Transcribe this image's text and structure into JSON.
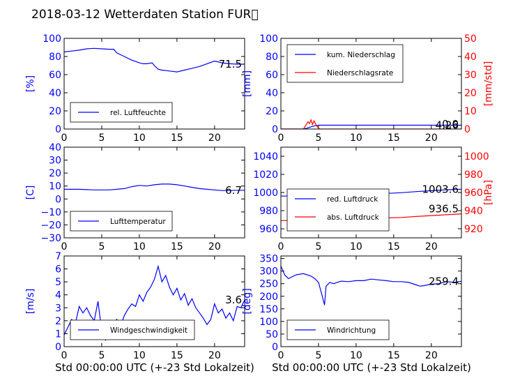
{
  "title": "2018-03-12 Wetterdaten Station FUR\u0000",
  "colors": {
    "blue": "#0000ff",
    "red": "#ff0000",
    "text": "#000000"
  },
  "x_label": "Std 00:00:00 UTC (+-23 Std Lokalzeit)",
  "chart_data": [
    {
      "type": "line",
      "xlim": [
        0,
        24
      ],
      "ylim": [
        0,
        100
      ],
      "x_ticks": [
        "0",
        "5",
        "10",
        "15",
        "20"
      ],
      "y_ticks": [
        "0",
        "20",
        "40",
        "60",
        "80",
        "100"
      ],
      "ylabel": "[%]",
      "legend": "bottom-left",
      "series": [
        {
          "name": "rel. Luftfeuchte",
          "color": "#0000ff",
          "x": [
            0,
            1,
            2,
            3,
            4,
            5,
            6,
            6.6,
            7,
            8,
            9,
            10,
            10.5,
            11,
            11.7,
            12,
            12.5,
            13,
            14,
            15,
            16,
            17,
            18,
            19,
            20,
            21,
            22,
            23,
            24
          ],
          "y": [
            85,
            86,
            87,
            88.5,
            89,
            88.5,
            88,
            88,
            84,
            80,
            76,
            73,
            72,
            72,
            73,
            70,
            66,
            65,
            64,
            63,
            65,
            67,
            69,
            72,
            75,
            73,
            72,
            71.5,
            71.5
          ]
        }
      ],
      "last_value": "71.5"
    },
    {
      "type": "line",
      "xlim": [
        0,
        24
      ],
      "ylim": [
        0,
        100
      ],
      "x_ticks": [
        "0",
        "5",
        "10",
        "15",
        "20"
      ],
      "y_ticks": [
        "0",
        "20",
        "40",
        "60",
        "80",
        "100"
      ],
      "ylabel": "[mm]",
      "y2lim": [
        0,
        50
      ],
      "y2_ticks": [
        "0",
        "10",
        "20",
        "30",
        "40",
        "50"
      ],
      "y2label": "[mm/std]",
      "legend": "top-left",
      "series": [
        {
          "name": "kum. Niederschlag",
          "color": "#0000ff",
          "axis": "left",
          "x": [
            0,
            3,
            3.5,
            4,
            4.5,
            5,
            5.5,
            24
          ],
          "y": [
            0,
            0,
            1,
            2.5,
            3.5,
            4.26,
            4.26,
            4.26
          ]
        },
        {
          "name": "Niederschlagsrate",
          "color": "#ff0000",
          "axis": "right",
          "x": [
            0,
            3,
            3.3,
            3.6,
            3.8,
            4,
            4.2,
            4.4,
            4.6,
            4.8,
            5,
            5.2,
            5.5,
            24
          ],
          "y": [
            0,
            0,
            2,
            4,
            3,
            5,
            2.5,
            4.5,
            3,
            1.5,
            0.5,
            0,
            0,
            0
          ]
        }
      ],
      "last_value": "4.26",
      "last_value_2": "0.0"
    },
    {
      "type": "line",
      "xlim": [
        0,
        24
      ],
      "ylim": [
        -30,
        40
      ],
      "x_ticks": [
        "0",
        "5",
        "10",
        "15",
        "20"
      ],
      "y_ticks": [
        "−30",
        "−20",
        "−10",
        "0",
        "10",
        "20",
        "30",
        "40"
      ],
      "ylabel": "[C]",
      "legend": "bottom-left",
      "series": [
        {
          "name": "Lufttemperatur",
          "color": "#0000ff",
          "x": [
            0,
            2,
            4,
            6,
            7,
            8,
            9,
            10,
            11,
            12,
            13,
            14,
            15,
            16,
            17,
            18,
            19,
            20,
            21,
            22,
            23,
            24
          ],
          "y": [
            7.5,
            7.5,
            7,
            7,
            7.5,
            8,
            9.5,
            10.5,
            10,
            11,
            11.5,
            11.5,
            11,
            10,
            9,
            8,
            7.5,
            7,
            6.5,
            6.5,
            6.7,
            6.7
          ]
        }
      ],
      "last_value": "6.7"
    },
    {
      "type": "line",
      "xlim": [
        0,
        24
      ],
      "ylim": [
        950,
        1050
      ],
      "x_ticks": [
        "0",
        "5",
        "10",
        "15",
        "20"
      ],
      "y_ticks": [
        "960",
        "980",
        "1000",
        "1020",
        "1040"
      ],
      "ylabel": "",
      "y2lim": [
        910,
        1010
      ],
      "y2_ticks": [
        "920",
        "940",
        "960",
        "980",
        "1000"
      ],
      "y2label": "[hPa]",
      "legend": "bottom-left",
      "series": [
        {
          "name": "red. Luftdruck",
          "color": "#0000ff",
          "axis": "left",
          "x": [
            0,
            4,
            8,
            10,
            12,
            14,
            16,
            18,
            20,
            22,
            24
          ],
          "y": [
            996,
            996.5,
            997.5,
            998.5,
            999,
            999,
            999.8,
            1001,
            1002,
            1003,
            1003.6
          ]
        },
        {
          "name": "abs. Luftdruck",
          "color": "#ff0000",
          "axis": "right",
          "x": [
            0,
            4,
            8,
            10,
            12,
            14,
            16,
            18,
            20,
            22,
            24
          ],
          "y": [
            929,
            929.5,
            930.5,
            931,
            931.5,
            932,
            932.5,
            933.5,
            934.5,
            935.5,
            936.5
          ]
        }
      ],
      "last_value": "1003.6",
      "last_value_2": "936.5"
    },
    {
      "type": "line",
      "xlim": [
        0,
        24
      ],
      "ylim": [
        0,
        7
      ],
      "x_ticks": [
        "0",
        "5",
        "10",
        "15",
        "20"
      ],
      "y_ticks": [
        "0",
        "1",
        "2",
        "3",
        "4",
        "5",
        "6",
        "7"
      ],
      "ylabel": "[m/s]",
      "legend": "bottom-left",
      "series": [
        {
          "name": "Windgeschwindigkeit",
          "color": "#0000ff",
          "x": [
            0,
            0.5,
            1,
            1.5,
            2,
            2.5,
            3,
            3.5,
            4,
            4.5,
            5,
            5.5,
            6,
            6.5,
            7,
            7.5,
            8,
            8.5,
            9,
            9.5,
            10,
            10.5,
            11,
            11.5,
            12,
            12.5,
            13,
            13.5,
            14,
            14.5,
            15,
            15.5,
            16,
            16.5,
            17,
            17.5,
            18,
            18.5,
            19,
            19.5,
            20,
            20.5,
            21,
            21.5,
            22,
            22.5,
            23,
            23.5,
            24
          ],
          "y": [
            0.9,
            1.5,
            2.1,
            1.8,
            3.1,
            2.6,
            3.0,
            2.4,
            2.0,
            3.5,
            1.2,
            0.5,
            1.0,
            1.6,
            2.1,
            1.6,
            2.4,
            2.9,
            3.3,
            3.1,
            4.0,
            3.5,
            4.2,
            4.6,
            5.2,
            6.2,
            5.0,
            5.5,
            4.6,
            4.0,
            4.5,
            3.6,
            4.1,
            3.2,
            3.7,
            3.0,
            2.6,
            2.2,
            1.7,
            2.1,
            3.3,
            2.6,
            2.9,
            2.2,
            2.6,
            2.0,
            3.1,
            3.0,
            3.6
          ]
        }
      ],
      "last_value": "3.6"
    },
    {
      "type": "line",
      "xlim": [
        0,
        24
      ],
      "ylim": [
        0,
        360
      ],
      "x_ticks": [
        "0",
        "5",
        "10",
        "15",
        "20"
      ],
      "y_ticks": [
        "0",
        "50",
        "100",
        "150",
        "200",
        "250",
        "300",
        "350"
      ],
      "ylabel": "[deg]",
      "legend": "bottom-left",
      "series": [
        {
          "name": "Windrichtung",
          "color": "#0000ff",
          "x": [
            0,
            0.5,
            1,
            2,
            3,
            4,
            4.5,
            5,
            5.5,
            5.8,
            6,
            6.5,
            7,
            8,
            9,
            10,
            11,
            12,
            13,
            14,
            15,
            16,
            17,
            18,
            18.5,
            19,
            20,
            21,
            22,
            23,
            24
          ],
          "y": [
            320,
            285,
            270,
            285,
            290,
            280,
            270,
            255,
            200,
            165,
            240,
            255,
            250,
            260,
            258,
            262,
            262,
            268,
            265,
            262,
            258,
            258,
            255,
            245,
            240,
            242,
            248,
            250,
            258,
            255,
            259.4
          ]
        }
      ],
      "last_value": "259.4"
    }
  ]
}
